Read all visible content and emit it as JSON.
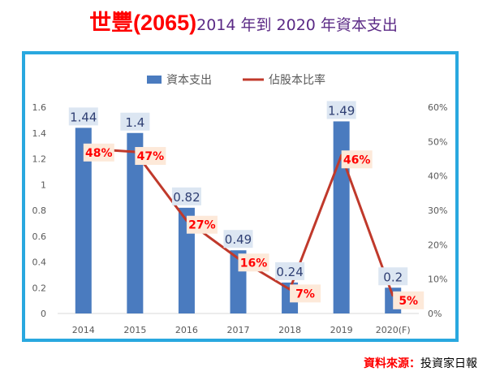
{
  "header": {
    "title_main": "世豐(2065)",
    "title_sub": "2014 年到 2020 年資本支出"
  },
  "footer": {
    "source_label": "資料來源：",
    "source_name": "投資家日報"
  },
  "colors": {
    "bar": "#4a7bbf",
    "line": "#c0392b",
    "frame": "#29a8df",
    "title": "#ff0000",
    "subtitle": "#5b2a86",
    "bar_label_bg": "#dce6f2",
    "line_label_bg": "#fde9d9"
  },
  "chart_data": {
    "type": "bar",
    "categories": [
      "2014",
      "2015",
      "2016",
      "2017",
      "2018",
      "2019",
      "2020(F)"
    ],
    "series": [
      {
        "name": "資本支出",
        "type": "bar",
        "axis": "left",
        "values": [
          1.44,
          1.4,
          0.82,
          0.49,
          0.24,
          1.49,
          0.2
        ],
        "labels": [
          "1.44",
          "1.4",
          "0.82",
          "0.49",
          "0.24",
          "1.49",
          "0.2"
        ]
      },
      {
        "name": "佔股本比率",
        "type": "line",
        "axis": "right",
        "values": [
          48,
          47,
          27,
          16,
          7,
          46,
          5
        ],
        "labels": [
          "48%",
          "47%",
          "27%",
          "16%",
          "7%",
          "46%",
          "5%"
        ]
      }
    ],
    "y_left": {
      "ylim": [
        0,
        1.6
      ],
      "ticks": [
        "0",
        "0.2",
        "0.4",
        "0.6",
        "0.8",
        "1",
        "1.2",
        "1.4",
        "1.6"
      ]
    },
    "y_right": {
      "ylim": [
        0,
        60
      ],
      "ticks": [
        "0%",
        "10%",
        "20%",
        "30%",
        "40%",
        "50%",
        "60%"
      ]
    },
    "grid": false,
    "legend": "top"
  }
}
